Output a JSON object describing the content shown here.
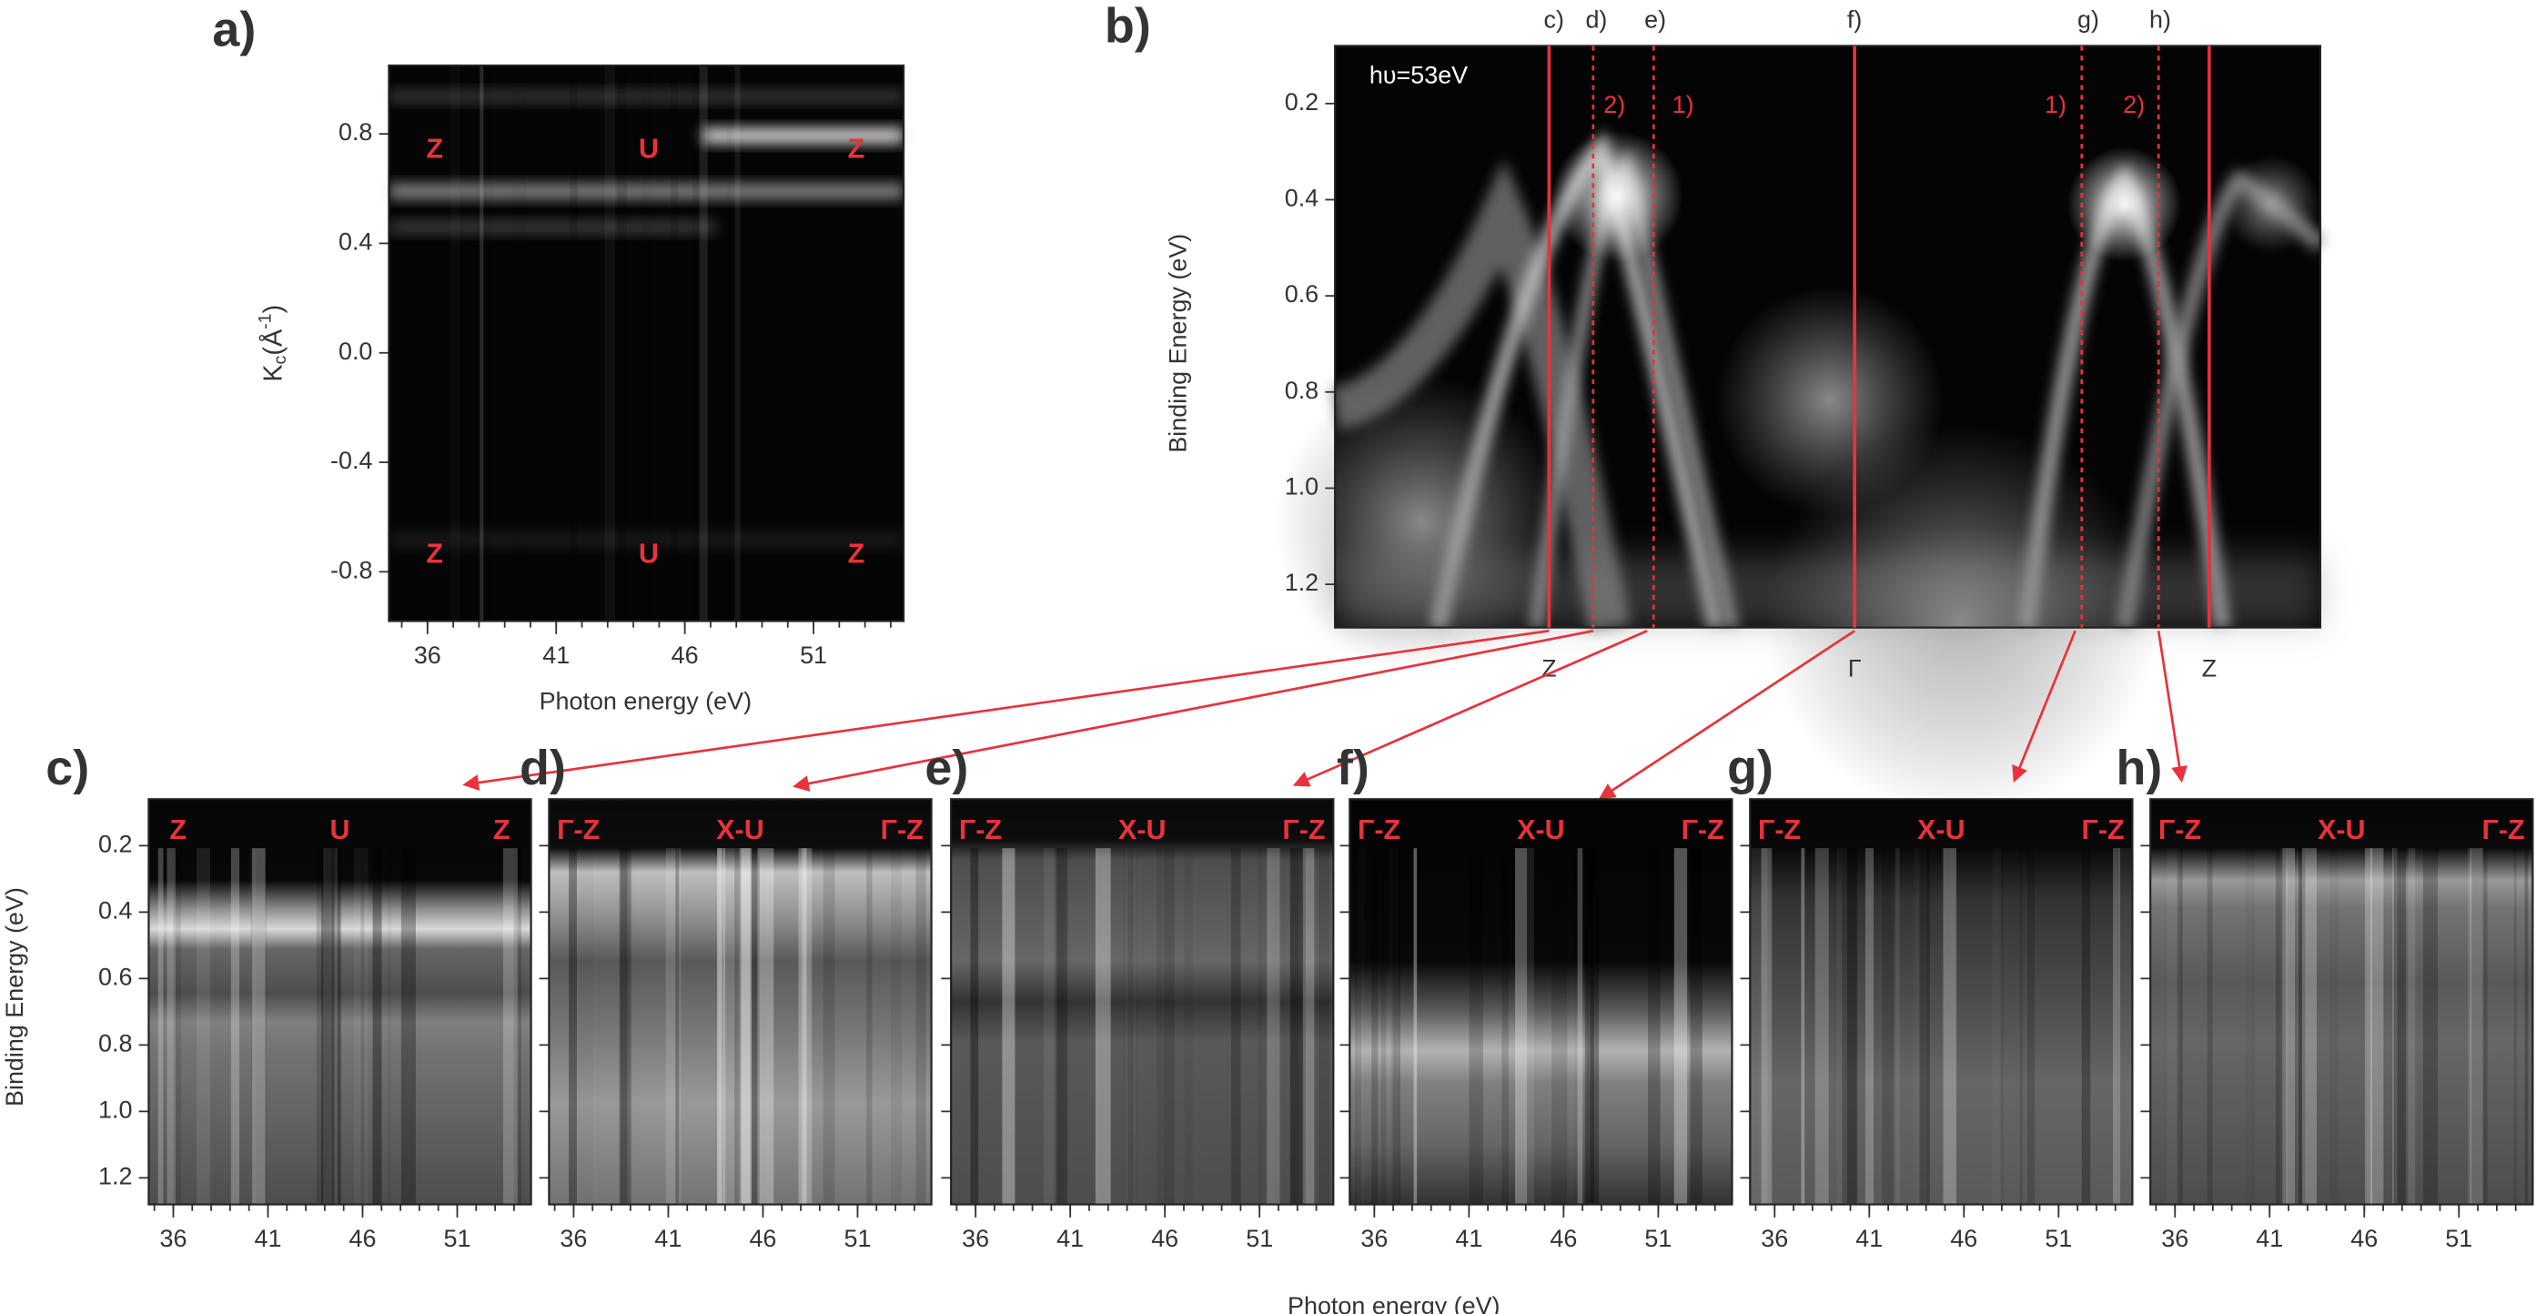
{
  "panel_a": {
    "label": "a)",
    "xlabel": "Photon energy (eV)",
    "ylabel": {
      "main": "K",
      "sub": "c",
      "unit": "(Å",
      "sup": "-1",
      "close": ")"
    },
    "xlim": [
      34.5,
      54.5
    ],
    "ylim": [
      -0.98,
      1.05
    ],
    "xticks": [
      36,
      41,
      46,
      51
    ],
    "xminor_step": 1,
    "yticks": [
      0.8,
      0.4,
      {
        "value": 0,
        "label": "0.0"
      },
      -0.4,
      -0.8
    ],
    "annotations": [
      "Z",
      "U",
      "Z",
      "Z",
      "U",
      "Z"
    ]
  },
  "panel_b": {
    "label": "b)",
    "ylabel": "Binding Energy (eV)",
    "ylim": [
      0.08,
      1.29
    ],
    "y_inverted": true,
    "yticks": [
      0.2,
      0.4,
      0.6,
      0.8,
      {
        "value": 1,
        "label": "1.0"
      },
      1.2
    ],
    "annotation": "hυ=53eV",
    "cuts": [
      "c)",
      "d)",
      "e)",
      "f)",
      "g)",
      "h)"
    ],
    "cut_numbers": [
      "2)",
      "1)",
      "1)",
      "2)"
    ],
    "points": [
      "Z",
      "Γ",
      "Z"
    ]
  },
  "panels_lower": {
    "xlabel": "Photon energy (eV)",
    "ylabel": "Binding Energy (eV)",
    "xlim": [
      34.7,
      54.9
    ],
    "ylim": [
      0.06,
      1.28
    ],
    "y_inverted": true,
    "xticks": [
      36,
      41,
      46,
      51
    ],
    "xminor_step": 1,
    "yticks": [
      0.2,
      0.4,
      0.6,
      0.8,
      {
        "value": 1,
        "label": "1.0"
      },
      1.2
    ],
    "items": [
      {
        "label": "c)",
        "annotations": [
          "Z",
          "U",
          "Z"
        ]
      },
      {
        "label": "d)",
        "annotations": [
          "Γ-Z",
          "X-U",
          "Γ-Z"
        ]
      },
      {
        "label": "e)",
        "annotations": [
          "Γ-Z",
          "X-U",
          "Γ-Z"
        ]
      },
      {
        "label": "f)",
        "annotations": [
          "Γ-Z",
          "X-U",
          "Γ-Z"
        ]
      },
      {
        "label": "g)",
        "annotations": [
          "Γ-Z",
          "X-U",
          "Γ-Z"
        ]
      },
      {
        "label": "h)",
        "annotations": [
          "Γ-Z",
          "X-U",
          "Γ-Z"
        ]
      }
    ]
  }
}
